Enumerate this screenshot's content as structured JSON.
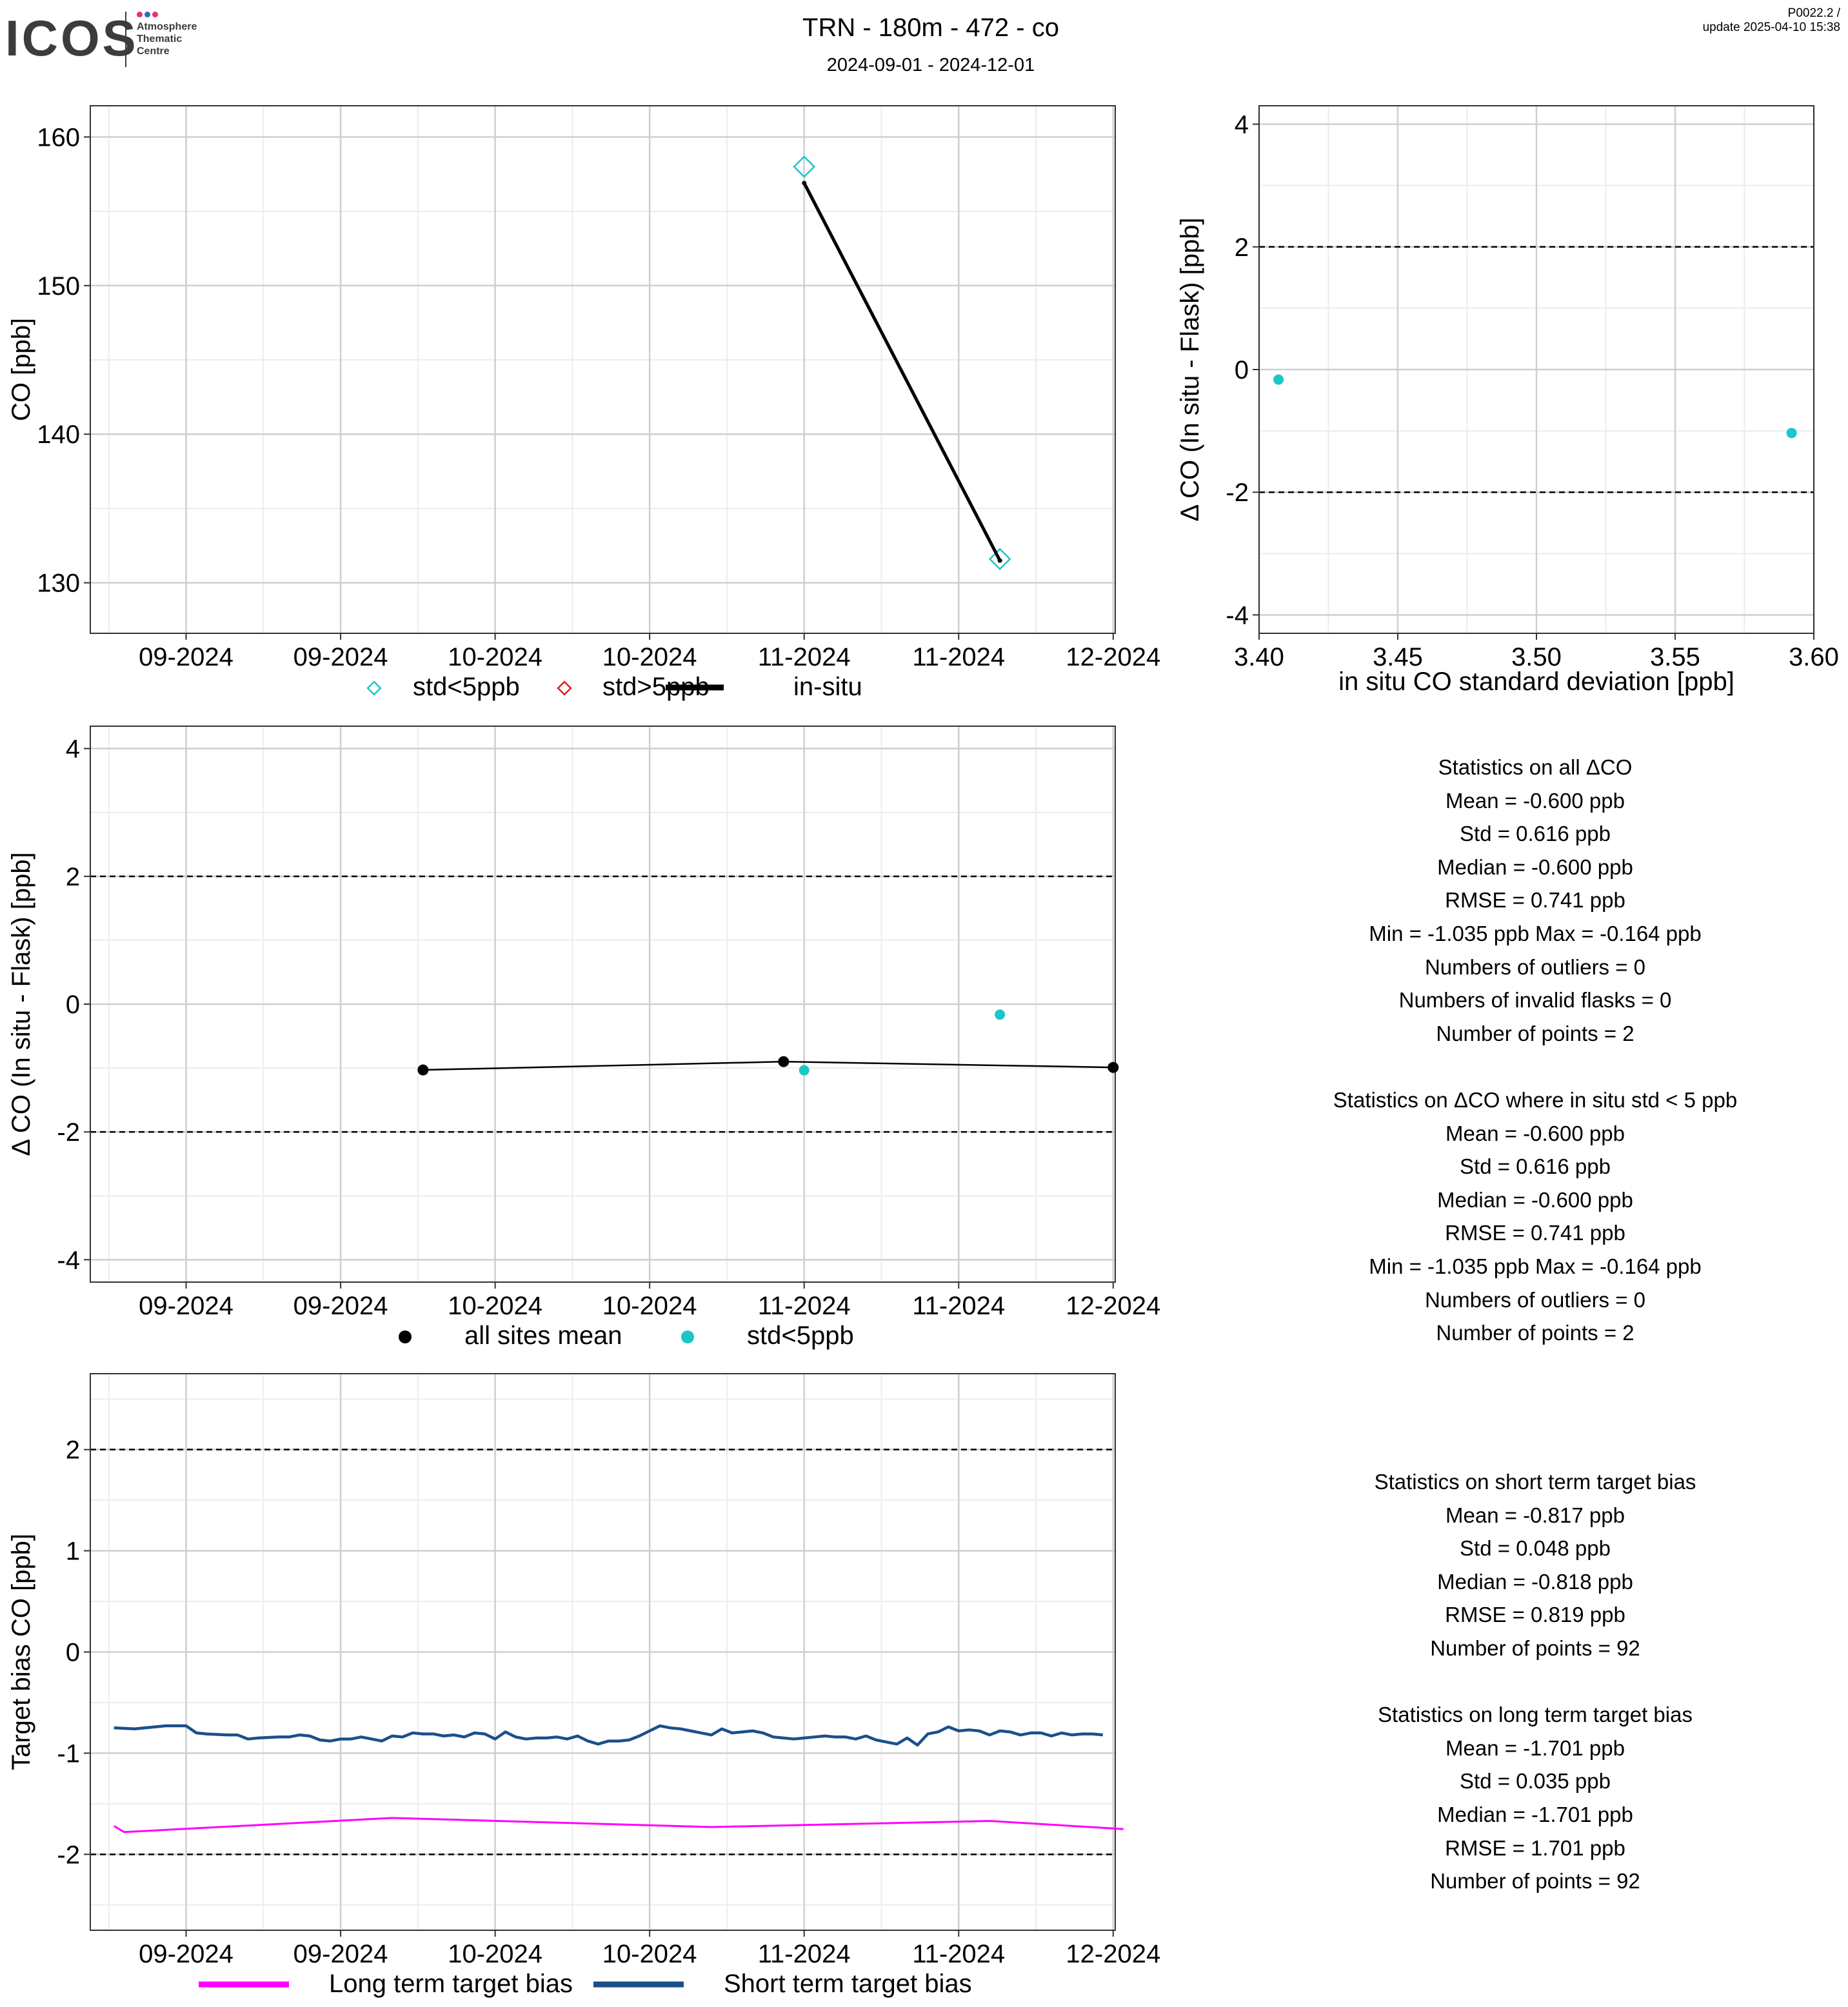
{
  "header": {
    "title": "TRN - 180m - 472 - co",
    "subtitle": "2024-09-01 - 2024-12-01",
    "version": "P0022.2 /",
    "update": "update  2025-04-10 15:38",
    "logo_text": "ICOS",
    "logo_sub": [
      "Atmosphere",
      "Thematic",
      "Centre"
    ]
  },
  "colors": {
    "cyan": "#1cc6c6",
    "red": "#e41a1c",
    "magenta": "#ff00ff",
    "navy": "#1a4f8a",
    "black": "#000000",
    "grid_major": "#cfcfcf",
    "grid_minor": "#ececec",
    "logo_dots": [
      "#e8336e",
      "#2f6db5",
      "#e8336e"
    ]
  },
  "chart_data": [
    {
      "id": "co_timeseries",
      "type": "line",
      "title": "",
      "xlabel": "",
      "ylabel": "CO [ppb]",
      "x_tick_labels": [
        "09-2024",
        "09-2024",
        "10-2024",
        "10-2024",
        "11-2024",
        "11-2024",
        "12-2024"
      ],
      "x_range_days": [
        -9.3,
        90.2
      ],
      "x_ticks_days": [
        0,
        15,
        30,
        45,
        60,
        75,
        90
      ],
      "ylim": [
        126.6,
        162.1
      ],
      "yticks": [
        130,
        140,
        150,
        160
      ],
      "grid": true,
      "legend_position": "bottom",
      "legend": [
        {
          "label": "std<5ppb",
          "marker": "open-diamond",
          "color": "cyan"
        },
        {
          "label": "std>5ppb",
          "marker": "open-diamond",
          "color": "red"
        },
        {
          "label": "in-situ",
          "marker": "line",
          "color": "black"
        }
      ],
      "series": [
        {
          "name": "std<5ppb",
          "kind": "open-diamond",
          "color": "cyan",
          "points": [
            {
              "x": "2024-10-31",
              "y": 158.0
            },
            {
              "x": "2024-11-19",
              "y": 131.6
            }
          ]
        },
        {
          "name": "in-situ",
          "kind": "line",
          "color": "black",
          "points": [
            {
              "x": "2024-10-31",
              "y": 156.9
            },
            {
              "x": "2024-11-19",
              "y": 131.5
            }
          ]
        }
      ]
    },
    {
      "id": "delta_vs_std",
      "type": "scatter",
      "title": "",
      "xlabel": "in situ CO standard deviation [ppb]",
      "ylabel": "Δ CO (In situ - Flask) [ppb]",
      "x_numeric": true,
      "xlim": [
        3.4,
        3.6
      ],
      "xticks": [
        3.4,
        3.45,
        3.5,
        3.55,
        3.6
      ],
      "x_tick_labels": [
        "3.40",
        "3.45",
        "3.50",
        "3.55",
        "3.60"
      ],
      "ylim": [
        -4.3,
        4.3
      ],
      "yticks": [
        -4,
        -2,
        0,
        2,
        4
      ],
      "dashed_y": [
        -2,
        2
      ],
      "grid": true,
      "series": [
        {
          "name": "std<5ppb",
          "kind": "dot",
          "color": "cyan",
          "points": [
            {
              "x": 3.407,
              "y": -0.164
            },
            {
              "x": 3.592,
              "y": -1.035
            }
          ]
        }
      ]
    },
    {
      "id": "delta_timeseries",
      "type": "scatter",
      "title": "",
      "xlabel": "",
      "ylabel": "Δ CO (In situ - Flask) [ppb]",
      "x_tick_labels": [
        "09-2024",
        "09-2024",
        "10-2024",
        "10-2024",
        "11-2024",
        "11-2024",
        "12-2024"
      ],
      "x_range_days": [
        -9.3,
        90.2
      ],
      "x_ticks_days": [
        0,
        15,
        30,
        45,
        60,
        75,
        90
      ],
      "ylim": [
        -4.35,
        4.35
      ],
      "yticks": [
        -4,
        -2,
        0,
        2,
        4
      ],
      "dashed_y": [
        -2,
        2
      ],
      "grid": true,
      "legend_position": "bottom",
      "legend": [
        {
          "label": "all sites mean",
          "marker": "dot",
          "color": "black"
        },
        {
          "label": "std<5ppb",
          "marker": "dot",
          "color": "cyan"
        }
      ],
      "series": [
        {
          "name": "all sites mean",
          "kind": "line-dots",
          "color": "black",
          "points": [
            {
              "x": "2024-09-24",
              "y": -1.03
            },
            {
              "x": "2024-10-29",
              "y": -0.9
            },
            {
              "x": "2024-11-30",
              "y": -0.99
            }
          ]
        },
        {
          "name": "std<5ppb",
          "kind": "dot",
          "color": "cyan",
          "points": [
            {
              "x": "2024-10-31",
              "y": -1.035
            },
            {
              "x": "2024-11-19",
              "y": -0.164
            }
          ]
        }
      ]
    },
    {
      "id": "target_bias",
      "type": "line",
      "title": "",
      "xlabel": "",
      "ylabel": "Target bias CO [ppb]",
      "x_tick_labels": [
        "09-2024",
        "09-2024",
        "10-2024",
        "10-2024",
        "11-2024",
        "11-2024",
        "12-2024"
      ],
      "x_range_days": [
        -9.3,
        90.2
      ],
      "x_ticks_days": [
        0,
        15,
        30,
        45,
        60,
        75,
        90
      ],
      "ylim": [
        -2.75,
        2.75
      ],
      "yticks": [
        -2,
        -1,
        0,
        1,
        2
      ],
      "dashed_y": [
        -2,
        2
      ],
      "grid": true,
      "legend_position": "bottom",
      "legend": [
        {
          "label": "Long term target bias",
          "marker": "line",
          "color": "magenta"
        },
        {
          "label": "Short term target bias",
          "marker": "line",
          "color": "navy"
        }
      ],
      "series": [
        {
          "name": "Long term target bias",
          "kind": "line",
          "color": "magenta",
          "points": [
            {
              "x": "2024-08-25",
              "y": -1.72
            },
            {
              "x": "2024-08-26",
              "y": -1.78
            },
            {
              "x": "2024-09-21",
              "y": -1.64
            },
            {
              "x": "2024-10-22",
              "y": -1.73
            },
            {
              "x": "2024-11-18",
              "y": -1.67
            },
            {
              "x": "2024-12-01",
              "y": -1.75
            }
          ]
        },
        {
          "name": "Short term target bias",
          "kind": "line",
          "color": "navy",
          "points": [
            {
              "x": "2024-08-25",
              "y": -0.75
            },
            {
              "x": "2024-08-27",
              "y": -0.76
            },
            {
              "x": "2024-08-29",
              "y": -0.74
            },
            {
              "x": "2024-08-30",
              "y": -0.73
            },
            {
              "x": "2024-09-01",
              "y": -0.73
            },
            {
              "x": "2024-09-02",
              "y": -0.8
            },
            {
              "x": "2024-09-03",
              "y": -0.81
            },
            {
              "x": "2024-09-05",
              "y": -0.82
            },
            {
              "x": "2024-09-06",
              "y": -0.82
            },
            {
              "x": "2024-09-07",
              "y": -0.86
            },
            {
              "x": "2024-09-08",
              "y": -0.85
            },
            {
              "x": "2024-09-10",
              "y": -0.84
            },
            {
              "x": "2024-09-11",
              "y": -0.84
            },
            {
              "x": "2024-09-12",
              "y": -0.82
            },
            {
              "x": "2024-09-13",
              "y": -0.83
            },
            {
              "x": "2024-09-14",
              "y": -0.87
            },
            {
              "x": "2024-09-15",
              "y": -0.88
            },
            {
              "x": "2024-09-16",
              "y": -0.86
            },
            {
              "x": "2024-09-17",
              "y": -0.86
            },
            {
              "x": "2024-09-18",
              "y": -0.84
            },
            {
              "x": "2024-09-20",
              "y": -0.88
            },
            {
              "x": "2024-09-21",
              "y": -0.83
            },
            {
              "x": "2024-09-22",
              "y": -0.84
            },
            {
              "x": "2024-09-23",
              "y": -0.8
            },
            {
              "x": "2024-09-24",
              "y": -0.81
            },
            {
              "x": "2024-09-25",
              "y": -0.81
            },
            {
              "x": "2024-09-26",
              "y": -0.83
            },
            {
              "x": "2024-09-27",
              "y": -0.82
            },
            {
              "x": "2024-09-28",
              "y": -0.84
            },
            {
              "x": "2024-09-29",
              "y": -0.8
            },
            {
              "x": "2024-09-30",
              "y": -0.81
            },
            {
              "x": "2024-10-01",
              "y": -0.86
            },
            {
              "x": "2024-10-02",
              "y": -0.79
            },
            {
              "x": "2024-10-03",
              "y": -0.84
            },
            {
              "x": "2024-10-04",
              "y": -0.86
            },
            {
              "x": "2024-10-05",
              "y": -0.85
            },
            {
              "x": "2024-10-06",
              "y": -0.85
            },
            {
              "x": "2024-10-07",
              "y": -0.84
            },
            {
              "x": "2024-10-08",
              "y": -0.86
            },
            {
              "x": "2024-10-09",
              "y": -0.83
            },
            {
              "x": "2024-10-10",
              "y": -0.88
            },
            {
              "x": "2024-10-11",
              "y": -0.91
            },
            {
              "x": "2024-10-12",
              "y": -0.88
            },
            {
              "x": "2024-10-13",
              "y": -0.88
            },
            {
              "x": "2024-10-14",
              "y": -0.87
            },
            {
              "x": "2024-10-15",
              "y": -0.83
            },
            {
              "x": "2024-10-16",
              "y": -0.78
            },
            {
              "x": "2024-10-17",
              "y": -0.73
            },
            {
              "x": "2024-10-18",
              "y": -0.75
            },
            {
              "x": "2024-10-19",
              "y": -0.76
            },
            {
              "x": "2024-10-20",
              "y": -0.78
            },
            {
              "x": "2024-10-21",
              "y": -0.8
            },
            {
              "x": "2024-10-22",
              "y": -0.82
            },
            {
              "x": "2024-10-23",
              "y": -0.76
            },
            {
              "x": "2024-10-24",
              "y": -0.8
            },
            {
              "x": "2024-10-25",
              "y": -0.79
            },
            {
              "x": "2024-10-26",
              "y": -0.78
            },
            {
              "x": "2024-10-27",
              "y": -0.8
            },
            {
              "x": "2024-10-28",
              "y": -0.84
            },
            {
              "x": "2024-10-29",
              "y": -0.85
            },
            {
              "x": "2024-10-30",
              "y": -0.86
            },
            {
              "x": "2024-10-31",
              "y": -0.85
            },
            {
              "x": "2024-11-01",
              "y": -0.84
            },
            {
              "x": "2024-11-02",
              "y": -0.83
            },
            {
              "x": "2024-11-03",
              "y": -0.84
            },
            {
              "x": "2024-11-04",
              "y": -0.84
            },
            {
              "x": "2024-11-05",
              "y": -0.86
            },
            {
              "x": "2024-11-06",
              "y": -0.83
            },
            {
              "x": "2024-11-07",
              "y": -0.87
            },
            {
              "x": "2024-11-08",
              "y": -0.89
            },
            {
              "x": "2024-11-09",
              "y": -0.91
            },
            {
              "x": "2024-11-10",
              "y": -0.85
            },
            {
              "x": "2024-11-11",
              "y": -0.92
            },
            {
              "x": "2024-11-12",
              "y": -0.81
            },
            {
              "x": "2024-11-13",
              "y": -0.79
            },
            {
              "x": "2024-11-14",
              "y": -0.74
            },
            {
              "x": "2024-11-15",
              "y": -0.78
            },
            {
              "x": "2024-11-16",
              "y": -0.77
            },
            {
              "x": "2024-11-17",
              "y": -0.78
            },
            {
              "x": "2024-11-18",
              "y": -0.82
            },
            {
              "x": "2024-11-19",
              "y": -0.78
            },
            {
              "x": "2024-11-20",
              "y": -0.79
            },
            {
              "x": "2024-11-21",
              "y": -0.82
            },
            {
              "x": "2024-11-22",
              "y": -0.8
            },
            {
              "x": "2024-11-23",
              "y": -0.8
            },
            {
              "x": "2024-11-24",
              "y": -0.83
            },
            {
              "x": "2024-11-25",
              "y": -0.8
            },
            {
              "x": "2024-11-26",
              "y": -0.82
            },
            {
              "x": "2024-11-27",
              "y": -0.81
            },
            {
              "x": "2024-11-28",
              "y": -0.81
            },
            {
              "x": "2024-11-29",
              "y": -0.82
            }
          ]
        }
      ]
    }
  ],
  "stats_delta": {
    "lines": [
      "Statistics on all ΔCO",
      "Mean =  -0.600 ppb",
      "Std =  0.616 ppb",
      "Median =  -0.600 ppb",
      "RMSE =  0.741 ppb",
      "Min =  -1.035 ppb Max =  -0.164 ppb",
      "Numbers of outliers =  0",
      "Numbers of invalid flasks =  0",
      "Number of points =  2",
      "",
      "Statistics on ΔCO where in situ std < 5 ppb",
      "Mean =  -0.600 ppb",
      "Std =  0.616 ppb",
      "Median =  -0.600 ppb",
      "RMSE =  0.741 ppb",
      "Min =  -1.035 ppb Max =  -0.164 ppb",
      "Numbers of outliers =  0",
      "Number of points =  2"
    ]
  },
  "stats_target": {
    "lines": [
      "Statistics on short term target bias",
      "Mean =  -0.817 ppb",
      "Std =  0.048 ppb",
      "Median =  -0.818 ppb",
      "RMSE =  0.819 ppb",
      "Number of points =  92",
      "",
      "Statistics on long term target bias",
      "Mean =  -1.701 ppb",
      "Std =  0.035 ppb",
      "Median =  -1.701 ppb",
      "RMSE =  1.701 ppb",
      "Number of points =  92"
    ]
  }
}
